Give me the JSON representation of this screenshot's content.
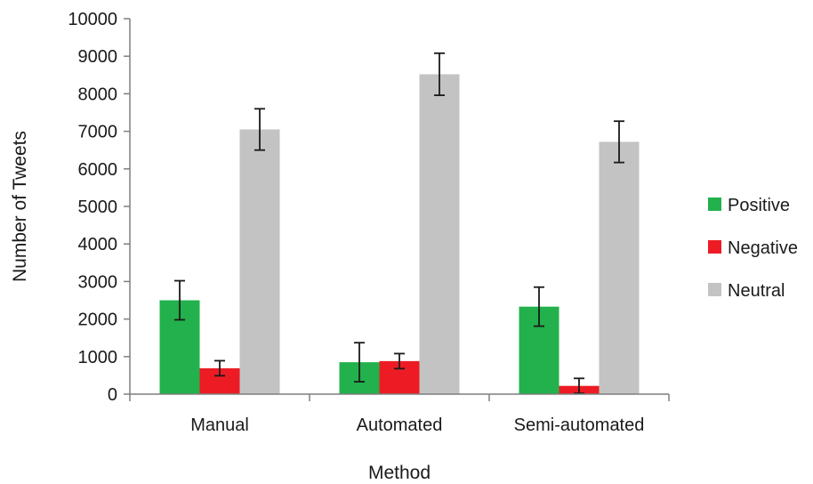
{
  "chart_data": {
    "type": "bar",
    "title": "",
    "xlabel": "Method",
    "ylabel": "Number of Tweets",
    "categories": [
      "Manual",
      "Automated",
      "Semi-automated"
    ],
    "ylim": [
      0,
      10000
    ],
    "yticks": [
      0,
      1000,
      2000,
      3000,
      4000,
      5000,
      6000,
      7000,
      8000,
      9000,
      10000
    ],
    "grid": false,
    "legend_position": "right",
    "series": [
      {
        "name": "Positive",
        "color": "#22b14c",
        "values": [
          2500,
          850,
          2330
        ],
        "error": [
          520,
          520,
          520
        ]
      },
      {
        "name": "Negative",
        "color": "#ed1c24",
        "values": [
          690,
          880,
          220
        ],
        "error": [
          200,
          200,
          200
        ]
      },
      {
        "name": "Neutral",
        "color": "#c3c3c3",
        "values": [
          7050,
          8520,
          6720
        ],
        "error": [
          550,
          560,
          550
        ]
      }
    ]
  }
}
